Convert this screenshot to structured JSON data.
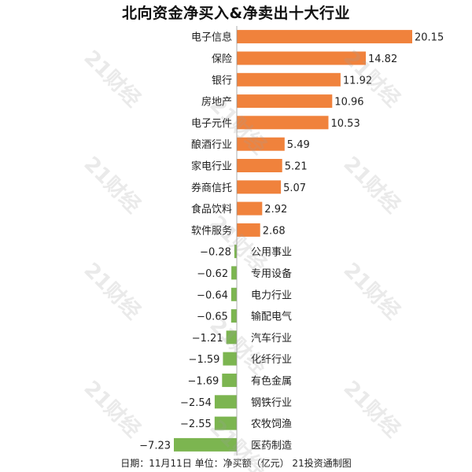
{
  "title": "北向资金净买入&净卖出十大行业",
  "footer": "日期：11月11日 单位：净买额（亿元） 21投资通制图",
  "watermark": "21财经",
  "colors": {
    "positive": "#F0823C",
    "negative": "#7CB550",
    "axis": "#999999"
  },
  "chart_data": {
    "type": "bar",
    "orientation": "horizontal",
    "title": "北向资金净买入&净卖出十大行业",
    "xlabel": "",
    "ylabel": "",
    "unit": "净买额（亿元）",
    "categories": [
      "电子信息",
      "保险",
      "银行",
      "房地产",
      "电子元件",
      "酿酒行业",
      "家电行业",
      "券商信托",
      "食品饮料",
      "软件服务",
      "公用事业",
      "专用设备",
      "电力行业",
      "输配电气",
      "汽车行业",
      "化纤行业",
      "有色金属",
      "钢铁行业",
      "农牧饲渔",
      "医药制造"
    ],
    "values": [
      20.15,
      14.82,
      11.92,
      10.96,
      10.53,
      5.49,
      5.21,
      5.07,
      2.92,
      2.68,
      -0.28,
      -0.62,
      -0.64,
      -0.65,
      -1.21,
      -1.59,
      -1.69,
      -2.54,
      -2.55,
      -7.23
    ],
    "labels": [
      "20.15",
      "14.82",
      "11.92",
      "10.96",
      "10.53",
      "5.49",
      "5.21",
      "5.07",
      "2.92",
      "2.68",
      "−0.28",
      "−0.62",
      "−0.64",
      "−0.65",
      "−1.21",
      "−1.59",
      "−1.69",
      "−2.54",
      "−2.55",
      "−7.23"
    ],
    "xlim": [
      -7.23,
      20.15
    ],
    "grid": false,
    "legend": "none"
  }
}
